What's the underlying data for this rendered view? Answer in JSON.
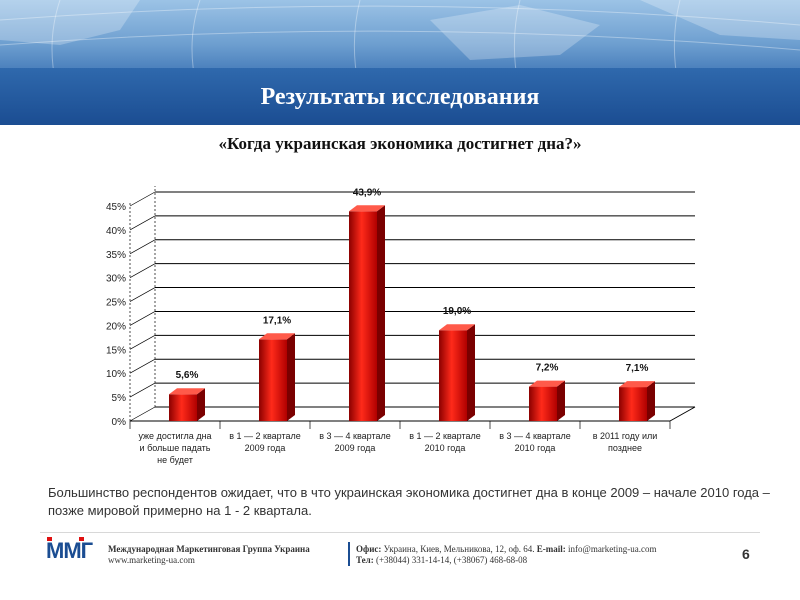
{
  "slide": {
    "title": "Результаты исследования",
    "question": "«Когда украинская экономика достигнет дна?»",
    "summary": "Большинство респондентов ожидает, что в что украинская экономика достигнет дна в конце 2009 – начале 2010 года – позже мировой примерно на 1 - 2 квартала.",
    "page_number": "6"
  },
  "chart_data": {
    "type": "bar",
    "categories": [
      [
        "уже достигла дна",
        "и больше падать",
        "не будет"
      ],
      [
        "в 1 — 2 квартале",
        "2009 года"
      ],
      [
        "в 3 — 4 квартале",
        "2009 года"
      ],
      [
        "в 1 — 2 квартале",
        "2010 года"
      ],
      [
        "в 3 — 4 квартале",
        "2010 года"
      ],
      [
        "в 2011 году или",
        "позднее"
      ]
    ],
    "values": [
      5.6,
      17.1,
      43.9,
      19.0,
      7.2,
      7.1
    ],
    "data_labels": [
      "5,6%",
      "17,1%",
      "43,9%",
      "19,0%",
      "7,2%",
      "7,1%"
    ],
    "y_ticks": [
      "0%",
      "5%",
      "10%",
      "15%",
      "20%",
      "25%",
      "30%",
      "35%",
      "40%",
      "45%"
    ],
    "ylim": [
      0,
      45
    ],
    "grid": true,
    "style": "3d",
    "bar_color": "#e01010"
  },
  "footer": {
    "logo_text": "ММГ",
    "company_line1": "Международная Маркетинговая Группа Украина",
    "company_line2": "www.marketing-ua.com",
    "office_label": "Офис:",
    "office_value": "Украина, Киев, Мельникова, 12, оф. 64.",
    "email_label": "E-mail:",
    "email_value": "info@marketing-ua.com",
    "phone_label": "Тел:",
    "phone_value": "(+38044) 331-14-14, (+38067) 468-68-08"
  }
}
